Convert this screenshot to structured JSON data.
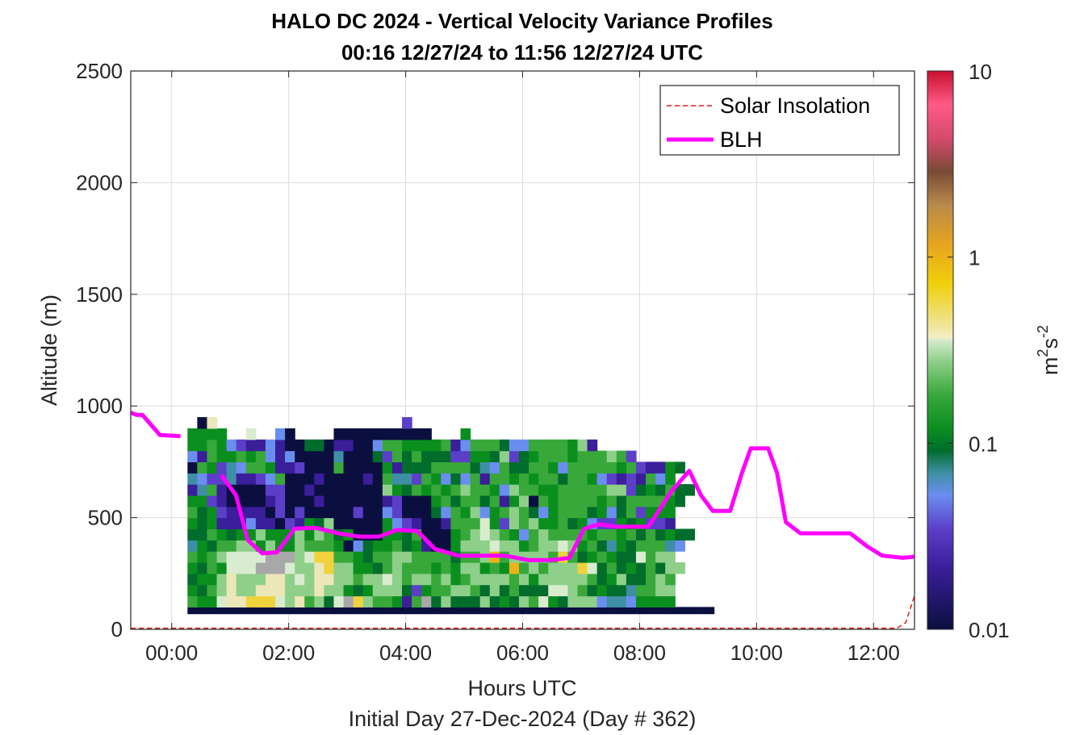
{
  "chart_data": {
    "type": "heatmap",
    "title": "HALO DC 2024 - Vertical Velocity Variance Profiles",
    "subtitle": "00:16 12/27/24 to 11:56 12/27/24  UTC",
    "xlabel": "Hours UTC",
    "xlabel2": "Initial Day 27-Dec-2024 (Day # 362)",
    "ylabel": "Altitude (m)",
    "xlim": [
      -0.7,
      12.7
    ],
    "ylim": [
      0,
      2500
    ],
    "x_ticks": [
      0,
      2,
      4,
      6,
      8,
      10,
      12
    ],
    "x_tick_labels": [
      "00:00",
      "02:00",
      "04:00",
      "06:00",
      "08:00",
      "10:00",
      "12:00"
    ],
    "y_ticks": [
      0,
      500,
      1000,
      1500,
      2000,
      2500
    ],
    "y_tick_labels": [
      "0",
      "500",
      "1000",
      "1500",
      "2000",
      "2500"
    ],
    "grid": true,
    "colorbar": {
      "scale": "log",
      "range": [
        0.01,
        10
      ],
      "ticks": [
        0.01,
        0.1,
        1,
        10
      ],
      "tick_labels": [
        "0.01",
        "0.1",
        "1",
        "10"
      ],
      "label_base": "m",
      "label_exp1": "2",
      "label_mid": "s",
      "label_exp2": "-2"
    },
    "legend": {
      "placement": "top-right",
      "entries": [
        {
          "label": "Solar Insolation",
          "color": "#e41a1c",
          "style": "dashed"
        },
        {
          "label": "BLH",
          "color": "#ff00ff",
          "style": "solid"
        }
      ]
    },
    "heatmap": {
      "x_start": 0.27,
      "x_step": 0.1667,
      "y_start": 100,
      "y_step": 50,
      "palette": {
        "K": "#0b0f3f",
        "V": "#3a1e9a",
        "P": "#5b3fc8",
        "B": "#6a8ef0",
        "T": "#3e8fa6",
        "D": "#006d2c",
        "G": "#0a8f1f",
        "M": "#38a83a",
        "L": "#8ecf8a",
        "W": "#d9ecd0",
        "C": "#ece6b8",
        "Y": "#f0d23c",
        "O": "#eeb219",
        "S": "#a8a8a8"
      },
      "rows": [
        "KKKKKKKKKKKKKKKKKKKKKKKKKKKKKKKKKKKKKKKKKKKKKKKKKKKKKK",
        "MGGWCCYYYWLCMLDWSYLMMGVMSDLDDDLDGDLMWGDLLLBTTBGGGG   ",
        "GDMLCLLCCCLLLCLLGDGLLLDPGMMLLMDLDMDDDWWLMDGDDTMMLL   ",
        "DGGLCLLLCCLWLCCLLMLLWLMLLMLGMLLLLMLGLLLLLMDGLDDMLM   ",
        "GDMGWWWSSSWLLCYLLGGDMLMMMGMGLLGMGOMLMLLLYWDMDGDMDLL   ",
        "MGMLWWWWSSSLWYYMMGDMMLLMMMMDMMLOMLLLLMYMDGMGDDWMLL   ",
        "TGDMMLLGLGGLMMMGKBDGGMDGVKKGLLLWLLGMLLWLGMDTGDMMMTB   ",
        "DDMGDGGLGGGLGLMDGKKKGGDMKKKGMLWLMGBMLMMMMGMMGMDMDGDD   ",
        "GDGVVVBVVKPVGDLKKKKKGBPVKKVMMMWGPLMLGGMDGBPPGDGPPV   ",
        "MDGPVVVVKPKPKKKKKPKKBPKKKDBMGLBGMLMDBGMMMDGBDMPGGG   ",
        "GGPVKKKKVPKKKVKKKKKKVPKKKGMDMMDMVGLKMGMMMMGMDMMMMGD   ",
        "VTMVKKKKPPKKVKKKKKKKLGDMGMGMLMMGBLMMGGMMMMMLLPDGDMDD   ",
        "TBPPTVVPBMKKKVKKKKVKMTTPMGBDBMVMMGMGMMDMMGBPVPVMBG   ",
        "KMGPTBMMGVVPKKKMKKKKGVDDDMMMMDTBMDDMMGBMMMMMGMPVVGD   ",
        "BVMGGMGMBVBKKKKTKKKDPMDMDDDPPGGDLPDGMMMGMMMLMP   ",
        "GGMGBPVVBVKKDDKVVKKBMMGGGGMVBMMMDBBMMMMGLV   ",
        "GGGG  W  BK    KKKKKKKKKK   G",
        " KC                   P"
      ]
    },
    "blh": {
      "x": [
        -0.7,
        -0.6,
        -0.5,
        -0.2,
        0.15,
        0.5,
        0.85,
        1.1,
        1.3,
        1.55,
        1.8,
        2.1,
        2.45,
        2.85,
        3.2,
        3.55,
        3.85,
        4.2,
        4.5,
        4.9,
        5.3,
        5.7,
        6.1,
        6.5,
        6.8,
        7.05,
        7.3,
        7.6,
        8.0,
        8.15,
        8.55,
        8.85,
        9.05,
        9.25,
        9.55,
        9.75,
        9.9,
        10.2,
        10.35,
        10.5,
        10.75,
        11.0,
        11.3,
        11.6,
        11.9,
        12.15,
        12.5,
        12.7
      ],
      "y": [
        970,
        960,
        960,
        870,
        865,
        null,
        690,
        600,
        400,
        340,
        345,
        450,
        455,
        430,
        415,
        415,
        445,
        440,
        360,
        330,
        330,
        330,
        310,
        310,
        320,
        450,
        470,
        460,
        460,
        460,
        620,
        710,
        600,
        530,
        530,
        700,
        810,
        810,
        700,
        480,
        430,
        430,
        430,
        430,
        370,
        330,
        320,
        325
      ]
    },
    "solar": {
      "x": [
        -0.7,
        12.4,
        12.55,
        12.7
      ],
      "y": [
        5,
        5,
        30,
        150
      ]
    }
  }
}
